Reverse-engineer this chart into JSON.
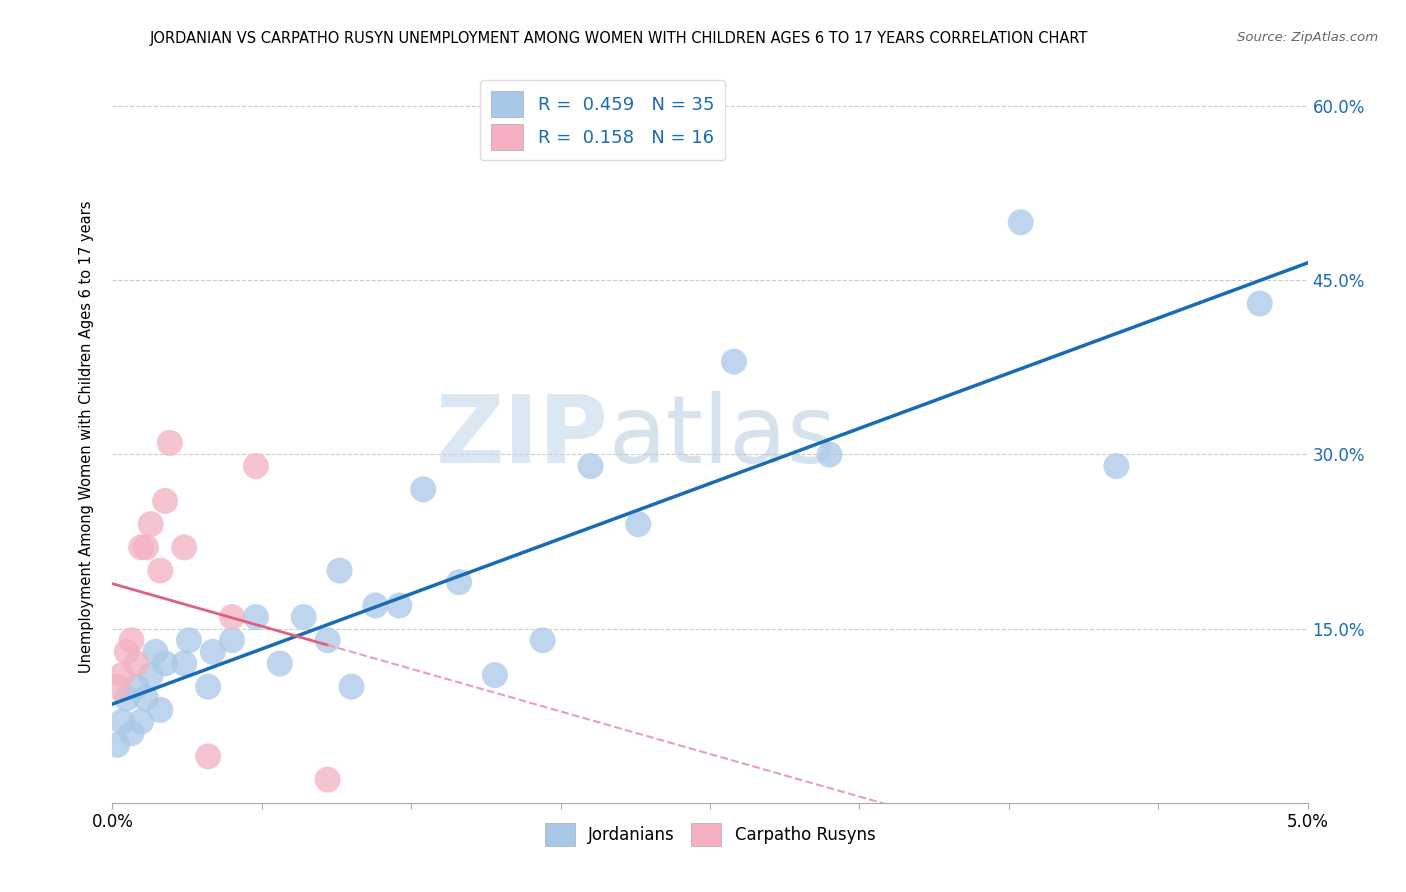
{
  "title": "JORDANIAN VS CARPATHO RUSYN UNEMPLOYMENT AMONG WOMEN WITH CHILDREN AGES 6 TO 17 YEARS CORRELATION CHART",
  "source": "Source: ZipAtlas.com",
  "ylabel": "Unemployment Among Women with Children Ages 6 to 17 years",
  "xlim": [
    0.0,
    0.05
  ],
  "ylim": [
    0.0,
    0.63
  ],
  "jordanians_x": [
    0.0002,
    0.0004,
    0.0006,
    0.0008,
    0.001,
    0.0012,
    0.0014,
    0.0016,
    0.0018,
    0.002,
    0.0022,
    0.003,
    0.0032,
    0.004,
    0.0042,
    0.005,
    0.006,
    0.007,
    0.008,
    0.009,
    0.0095,
    0.01,
    0.011,
    0.012,
    0.013,
    0.0145,
    0.016,
    0.018,
    0.02,
    0.022,
    0.026,
    0.03,
    0.038,
    0.042,
    0.048
  ],
  "jordanians_y": [
    0.05,
    0.07,
    0.09,
    0.06,
    0.1,
    0.07,
    0.09,
    0.11,
    0.13,
    0.08,
    0.12,
    0.12,
    0.14,
    0.1,
    0.13,
    0.14,
    0.16,
    0.12,
    0.16,
    0.14,
    0.2,
    0.1,
    0.17,
    0.17,
    0.27,
    0.19,
    0.11,
    0.14,
    0.29,
    0.24,
    0.38,
    0.3,
    0.5,
    0.29,
    0.43
  ],
  "carpatho_x": [
    0.0002,
    0.0004,
    0.0006,
    0.0008,
    0.001,
    0.0012,
    0.0014,
    0.0016,
    0.002,
    0.0022,
    0.0024,
    0.003,
    0.004,
    0.005,
    0.006,
    0.009
  ],
  "carpatho_y": [
    0.1,
    0.11,
    0.13,
    0.14,
    0.12,
    0.22,
    0.22,
    0.24,
    0.2,
    0.26,
    0.31,
    0.22,
    0.04,
    0.16,
    0.29,
    0.02
  ],
  "jordanians_color": "#a8c8e8",
  "carpatho_color": "#f4b0c0",
  "jordanians_line_color": "#1a6bb5",
  "carpatho_solid_color": "#e06080",
  "carpatho_dashed_color": "#e8a0b0",
  "R_jordanians": 0.459,
  "N_jordanians": 35,
  "R_carpatho": 0.158,
  "N_carpatho": 16,
  "watermark_zip": "ZIP",
  "watermark_atlas": "atlas",
  "background_color": "#ffffff",
  "grid_color": "#cccccc"
}
